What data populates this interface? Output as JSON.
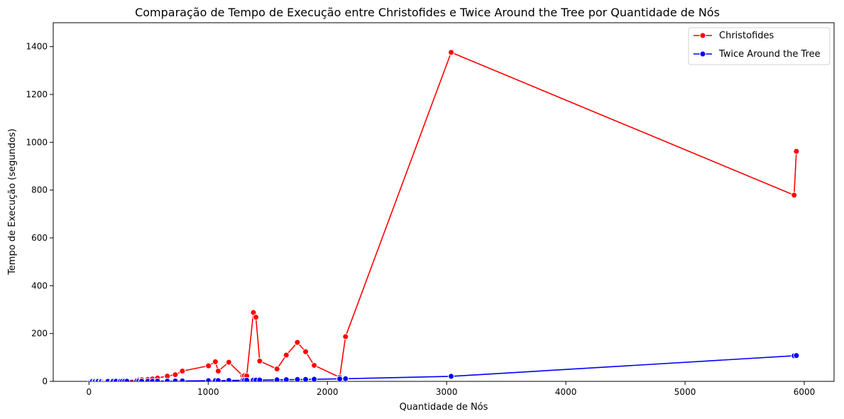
{
  "chart_data": {
    "type": "line",
    "title": "Comparação de Tempo de Execução entre Christofides e Twice Around the Tree por Quantidade de Nós",
    "xlabel": "Quantidade de Nós",
    "ylabel": "Tempo de Execução (segundos)",
    "xlim": [
      -300,
      6250
    ],
    "ylim": [
      0,
      1500
    ],
    "xticks": [
      0,
      1000,
      2000,
      3000,
      4000,
      5000,
      6000
    ],
    "yticks": [
      0,
      200,
      400,
      600,
      800,
      1000,
      1200,
      1400
    ],
    "grid": false,
    "legend_position": "top-right",
    "series": [
      {
        "name": "Christofides",
        "color": "#ff0000",
        "x": [
          14,
          22,
          29,
          48,
          52,
          70,
          76,
          99,
          100,
          105,
          124,
          127,
          136,
          144,
          150,
          152,
          159,
          195,
          200,
          225,
          226,
          262,
          264,
          280,
          299,
          318,
          400,
          417,
          439,
          442,
          493,
          532,
          574,
          575,
          654,
          657,
          724,
          783,
          1002,
          1060,
          1084,
          1173,
          1291,
          1304,
          1323,
          1379,
          1400,
          1432,
          1577,
          1655,
          1748,
          1817,
          1889,
          2103,
          2152,
          3038,
          5915,
          5934
        ],
        "y": [
          0.01,
          0.01,
          0.02,
          0.05,
          0.05,
          0.08,
          0.1,
          0.15,
          0.15,
          0.2,
          0.3,
          0.35,
          0.4,
          0.5,
          0.5,
          0.6,
          0.7,
          1.0,
          1.2,
          1.5,
          1.5,
          2,
          2,
          2.5,
          3,
          3.5,
          5,
          6,
          6.5,
          7,
          8,
          10,
          16,
          14,
          22,
          22,
          28,
          43,
          65,
          82,
          43,
          80,
          23,
          24,
          23,
          288,
          268,
          85,
          52,
          110,
          163,
          124,
          67,
          17,
          187,
          1376,
          779,
          962
        ]
      },
      {
        "name": "Twice Around the Tree",
        "color": "#0000ff",
        "x": [
          14,
          22,
          29,
          48,
          52,
          70,
          76,
          99,
          100,
          105,
          124,
          127,
          136,
          144,
          150,
          152,
          159,
          195,
          200,
          225,
          226,
          262,
          264,
          280,
          299,
          318,
          400,
          417,
          439,
          442,
          493,
          532,
          574,
          575,
          654,
          657,
          724,
          783,
          1002,
          1060,
          1084,
          1173,
          1291,
          1304,
          1323,
          1379,
          1400,
          1432,
          1577,
          1655,
          1748,
          1817,
          1889,
          2103,
          2152,
          3038,
          5915,
          5934
        ],
        "y": [
          0.01,
          0.01,
          0.01,
          0.02,
          0.02,
          0.03,
          0.03,
          0.05,
          0.05,
          0.05,
          0.06,
          0.07,
          0.08,
          0.09,
          0.1,
          0.1,
          0.11,
          0.15,
          0.16,
          0.2,
          0.2,
          0.25,
          0.26,
          0.3,
          0.33,
          0.36,
          0.55,
          0.6,
          0.65,
          0.66,
          0.8,
          0.9,
          1.0,
          1.0,
          1.3,
          1.3,
          1.5,
          1.8,
          2.8,
          3.1,
          3.3,
          3.8,
          4.5,
          4.6,
          4.8,
          5.1,
          5.3,
          5.5,
          6.5,
          7.0,
          7.8,
          8.2,
          8.8,
          10.5,
          11,
          21,
          107,
          108
        ]
      }
    ]
  }
}
